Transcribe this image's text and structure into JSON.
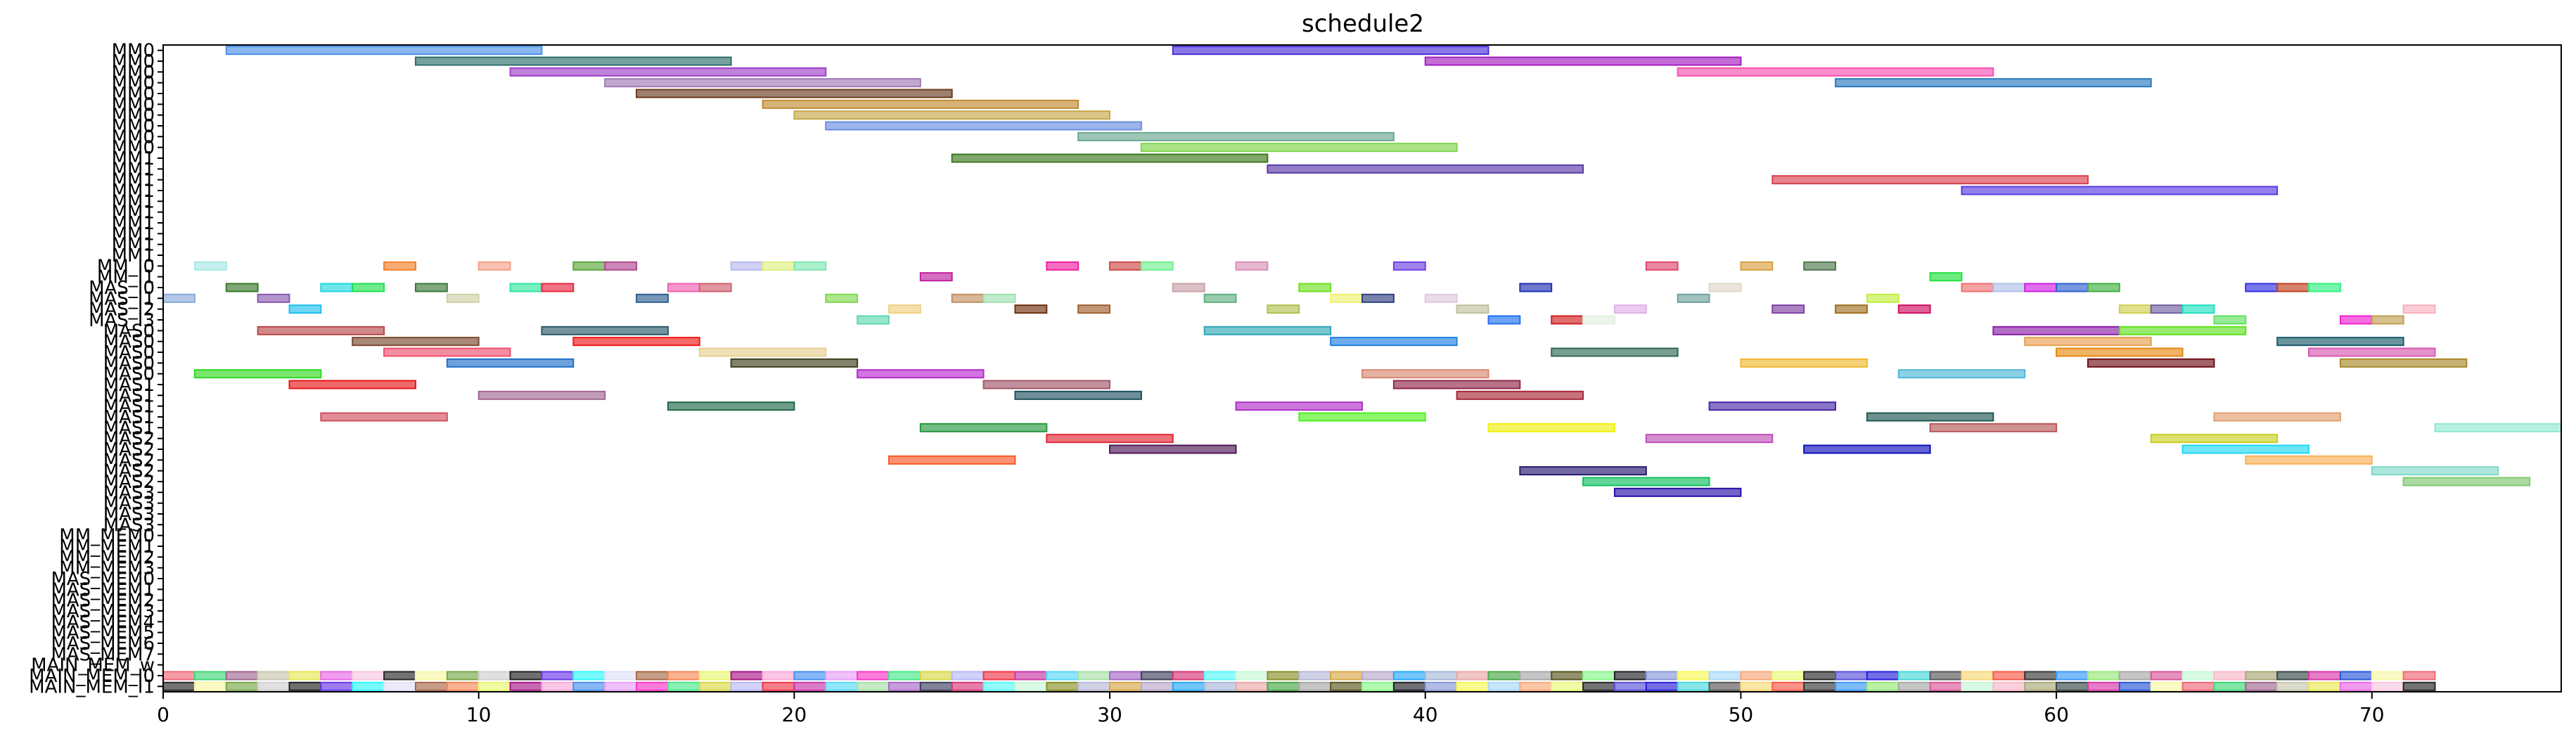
{
  "chart_data": {
    "type": "gantt",
    "title": "schedule2",
    "xlim": [
      0,
      76
    ],
    "x_ticks": [
      0,
      10,
      20,
      30,
      40,
      50,
      60,
      70
    ],
    "x_tick_labels": [
      "0",
      "10",
      "20",
      "30",
      "40",
      "50",
      "60",
      "70"
    ],
    "ylabels": [
      "MM0",
      "MM0",
      "MM0",
      "MM0",
      "MM0",
      "MM0",
      "MM0",
      "MM0",
      "MM0",
      "MM0",
      "MM1",
      "MM1",
      "MM1",
      "MM1",
      "MM1",
      "MM1",
      "MM1",
      "MM1",
      "MM1",
      "MM1",
      "MM_I0",
      "MM_I1",
      "MAS_I0",
      "MAS_I1",
      "MAS_I2",
      "MAS_I3",
      "MAS0",
      "MAS0",
      "MAS0",
      "MAS0",
      "MAS0",
      "MAS1",
      "MAS1",
      "MAS1",
      "MAS1",
      "MAS1",
      "MAS2",
      "MAS2",
      "MAS2",
      "MAS2",
      "MAS2",
      "MAS3",
      "MAS3",
      "MAS3",
      "MAS3",
      "MM_MEM0",
      "MM_MEM1",
      "MM_MEM2",
      "MM_MEM3",
      "MAS_MEM0",
      "MAS_MEM1",
      "MAS_MEM2",
      "MAS_MEM3",
      "MAS_MEM4",
      "MAS_MEM5",
      "MAS_MEM6",
      "MAS_MEM7",
      "MAIN_MEM_w",
      "MAIN_MEM_I0",
      "MAIN_MEM_I1"
    ],
    "bars": [
      {
        "row": 0,
        "start": 2,
        "end": 12,
        "color": "#4a90e8"
      },
      {
        "row": 0,
        "start": 32,
        "end": 42,
        "color": "#4b2fd8"
      },
      {
        "row": 1,
        "start": 8,
        "end": 18,
        "color": "#2e6e6a"
      },
      {
        "row": 1,
        "start": 40,
        "end": 50,
        "color": "#a51ec0"
      },
      {
        "row": 2,
        "start": 11,
        "end": 21,
        "color": "#9e3fc9"
      },
      {
        "row": 2,
        "start": 48,
        "end": 58,
        "color": "#f852b0"
      },
      {
        "row": 3,
        "start": 14,
        "end": 24,
        "color": "#a07ab5"
      },
      {
        "row": 3,
        "start": 53,
        "end": 63,
        "color": "#2a7ac0"
      },
      {
        "row": 4,
        "start": 15,
        "end": 25,
        "color": "#6b3a1e"
      },
      {
        "row": 5,
        "start": 19,
        "end": 29,
        "color": "#c28a32"
      },
      {
        "row": 6,
        "start": 20,
        "end": 30,
        "color": "#c8a848"
      },
      {
        "row": 7,
        "start": 21,
        "end": 31,
        "color": "#6a8ee0"
      },
      {
        "row": 8,
        "start": 29,
        "end": 39,
        "color": "#6aa88f"
      },
      {
        "row": 9,
        "start": 31,
        "end": 41,
        "color": "#7ed44a"
      },
      {
        "row": 10,
        "start": 25,
        "end": 35,
        "color": "#3c7a1e"
      },
      {
        "row": 11,
        "start": 35,
        "end": 45,
        "color": "#5a3aa8"
      },
      {
        "row": 12,
        "start": 51,
        "end": 61,
        "color": "#d8404e"
      },
      {
        "row": 13,
        "start": 57,
        "end": 67,
        "color": "#5a3ae0"
      },
      {
        "row": 20,
        "start": 1,
        "end": 2,
        "color": "#a8e8e6"
      },
      {
        "row": 20,
        "start": 7,
        "end": 8,
        "color": "#f2802a"
      },
      {
        "row": 20,
        "start": 10,
        "end": 11,
        "color": "#f4a088"
      },
      {
        "row": 20,
        "start": 13,
        "end": 14,
        "color": "#5aa83a"
      },
      {
        "row": 20,
        "start": 14,
        "end": 15,
        "color": "#b04a90"
      },
      {
        "row": 20,
        "start": 18,
        "end": 19,
        "color": "#b8b8f0"
      },
      {
        "row": 20,
        "start": 19,
        "end": 20,
        "color": "#e0f080"
      },
      {
        "row": 20,
        "start": 20,
        "end": 21,
        "color": "#80e8b0"
      },
      {
        "row": 20,
        "start": 28,
        "end": 29,
        "color": "#f020a0"
      },
      {
        "row": 20,
        "start": 30,
        "end": 31,
        "color": "#d04848"
      },
      {
        "row": 20,
        "start": 31,
        "end": 32,
        "color": "#70f090"
      },
      {
        "row": 20,
        "start": 34,
        "end": 35,
        "color": "#d890b8"
      },
      {
        "row": 20,
        "start": 39,
        "end": 40,
        "color": "#7040e0"
      },
      {
        "row": 20,
        "start": 47,
        "end": 48,
        "color": "#e04870"
      },
      {
        "row": 20,
        "start": 50,
        "end": 51,
        "color": "#d8a040"
      },
      {
        "row": 20,
        "start": 52,
        "end": 53,
        "color": "#507850"
      },
      {
        "row": 21,
        "start": 24,
        "end": 25,
        "color": "#c020a0"
      },
      {
        "row": 21,
        "start": 56,
        "end": 57,
        "color": "#20e040"
      },
      {
        "row": 22,
        "start": 2,
        "end": 3,
        "color": "#3a7a2a"
      },
      {
        "row": 22,
        "start": 5,
        "end": 6,
        "color": "#20d8e0"
      },
      {
        "row": 22,
        "start": 6,
        "end": 7,
        "color": "#20e050"
      },
      {
        "row": 22,
        "start": 8,
        "end": 9,
        "color": "#3a7a3a"
      },
      {
        "row": 22,
        "start": 11,
        "end": 12,
        "color": "#30e8a0"
      },
      {
        "row": 22,
        "start": 12,
        "end": 13,
        "color": "#e82840"
      },
      {
        "row": 22,
        "start": 16,
        "end": 17,
        "color": "#f060b0"
      },
      {
        "row": 22,
        "start": 17,
        "end": 18,
        "color": "#d06070"
      },
      {
        "row": 22,
        "start": 32,
        "end": 33,
        "color": "#c8a0a8"
      },
      {
        "row": 22,
        "start": 36,
        "end": 37,
        "color": "#70e020"
      },
      {
        "row": 22,
        "start": 43,
        "end": 44,
        "color": "#2030b0"
      },
      {
        "row": 22,
        "start": 49,
        "end": 50,
        "color": "#e0d8c8"
      },
      {
        "row": 22,
        "start": 57,
        "end": 58,
        "color": "#f07070"
      },
      {
        "row": 22,
        "start": 58,
        "end": 59,
        "color": "#b0c0e8"
      },
      {
        "row": 22,
        "start": 59,
        "end": 60,
        "color": "#d020e0"
      },
      {
        "row": 22,
        "start": 60,
        "end": 61,
        "color": "#3060d0"
      },
      {
        "row": 22,
        "start": 61,
        "end": 62,
        "color": "#40b040"
      },
      {
        "row": 22,
        "start": 66,
        "end": 67,
        "color": "#3030e0"
      },
      {
        "row": 22,
        "start": 67,
        "end": 68,
        "color": "#c04020"
      },
      {
        "row": 22,
        "start": 68,
        "end": 69,
        "color": "#30f080"
      },
      {
        "row": 23,
        "start": 0,
        "end": 1,
        "color": "#88aad8"
      },
      {
        "row": 23,
        "start": 3,
        "end": 4,
        "color": "#8a5ab0"
      },
      {
        "row": 23,
        "start": 9,
        "end": 10,
        "color": "#d0d0a8"
      },
      {
        "row": 23,
        "start": 15,
        "end": 16,
        "color": "#306090"
      },
      {
        "row": 23,
        "start": 21,
        "end": 22,
        "color": "#80d850"
      },
      {
        "row": 23,
        "start": 25,
        "end": 26,
        "color": "#c09060"
      },
      {
        "row": 23,
        "start": 26,
        "end": 27,
        "color": "#a0e0b0"
      },
      {
        "row": 23,
        "start": 33,
        "end": 34,
        "color": "#60b080"
      },
      {
        "row": 23,
        "start": 37,
        "end": 38,
        "color": "#f0f070"
      },
      {
        "row": 23,
        "start": 38,
        "end": 39,
        "color": "#304080"
      },
      {
        "row": 23,
        "start": 40,
        "end": 41,
        "color": "#e0c8e0"
      },
      {
        "row": 23,
        "start": 48,
        "end": 49,
        "color": "#70a0a0"
      },
      {
        "row": 23,
        "start": 54,
        "end": 55,
        "color": "#c0f040"
      },
      {
        "row": 24,
        "start": 4,
        "end": 5,
        "color": "#20c0f0"
      },
      {
        "row": 24,
        "start": 23,
        "end": 24,
        "color": "#f0d080"
      },
      {
        "row": 24,
        "start": 27,
        "end": 28,
        "color": "#703010"
      },
      {
        "row": 24,
        "start": 29,
        "end": 30,
        "color": "#a06030"
      },
      {
        "row": 24,
        "start": 35,
        "end": 36,
        "color": "#b0c050"
      },
      {
        "row": 24,
        "start": 41,
        "end": 42,
        "color": "#c0c0a0"
      },
      {
        "row": 24,
        "start": 46,
        "end": 47,
        "color": "#e0b0e8"
      },
      {
        "row": 24,
        "start": 51,
        "end": 52,
        "color": "#8040a0"
      },
      {
        "row": 24,
        "start": 53,
        "end": 54,
        "color": "#a07020"
      },
      {
        "row": 24,
        "start": 55,
        "end": 56,
        "color": "#d01060"
      },
      {
        "row": 24,
        "start": 62,
        "end": 63,
        "color": "#d0d050"
      },
      {
        "row": 24,
        "start": 63,
        "end": 64,
        "color": "#7060a0"
      },
      {
        "row": 24,
        "start": 64,
        "end": 65,
        "color": "#20e0c0"
      },
      {
        "row": 24,
        "start": 71,
        "end": 72,
        "color": "#f8b0c0"
      },
      {
        "row": 25,
        "start": 22,
        "end": 23,
        "color": "#60d8b0"
      },
      {
        "row": 25,
        "start": 42,
        "end": 43,
        "color": "#2070f0"
      },
      {
        "row": 25,
        "start": 44,
        "end": 45,
        "color": "#d02020"
      },
      {
        "row": 25,
        "start": 45,
        "end": 46,
        "color": "#e0f0e0"
      },
      {
        "row": 25,
        "start": 65,
        "end": 66,
        "color": "#60e060"
      },
      {
        "row": 25,
        "start": 69,
        "end": 70,
        "color": "#f020d0"
      },
      {
        "row": 25,
        "start": 70,
        "end": 71,
        "color": "#c0a050"
      },
      {
        "row": 26,
        "start": 3,
        "end": 7,
        "color": "#b84848"
      },
      {
        "row": 26,
        "start": 12,
        "end": 16,
        "color": "#2a5a6a"
      },
      {
        "row": 26,
        "start": 33,
        "end": 37,
        "color": "#30a8b8"
      },
      {
        "row": 26,
        "start": 58,
        "end": 62,
        "color": "#8a20a8"
      },
      {
        "row": 26,
        "start": 62,
        "end": 66,
        "color": "#60e020"
      },
      {
        "row": 27,
        "start": 6,
        "end": 10,
        "color": "#7a4a30"
      },
      {
        "row": 27,
        "start": 13,
        "end": 17,
        "color": "#f01818"
      },
      {
        "row": 27,
        "start": 37,
        "end": 41,
        "color": "#2080e0"
      },
      {
        "row": 27,
        "start": 59,
        "end": 63,
        "color": "#e8a050"
      },
      {
        "row": 27,
        "start": 67,
        "end": 71,
        "color": "#1a5a6a"
      },
      {
        "row": 28,
        "start": 7,
        "end": 11,
        "color": "#f05070"
      },
      {
        "row": 28,
        "start": 17,
        "end": 21,
        "color": "#e8d090"
      },
      {
        "row": 28,
        "start": 44,
        "end": 48,
        "color": "#306858"
      },
      {
        "row": 28,
        "start": 60,
        "end": 64,
        "color": "#e88810"
      },
      {
        "row": 28,
        "start": 68,
        "end": 72,
        "color": "#d858b0"
      },
      {
        "row": 29,
        "start": 9,
        "end": 13,
        "color": "#2070c8"
      },
      {
        "row": 29,
        "start": 18,
        "end": 22,
        "color": "#404020"
      },
      {
        "row": 29,
        "start": 50,
        "end": 54,
        "color": "#f0b830"
      },
      {
        "row": 29,
        "start": 61,
        "end": 65,
        "color": "#701018"
      },
      {
        "row": 29,
        "start": 69,
        "end": 73,
        "color": "#a88828"
      },
      {
        "row": 30,
        "start": 1,
        "end": 5,
        "color": "#30d820"
      },
      {
        "row": 30,
        "start": 22,
        "end": 26,
        "color": "#b828d0"
      },
      {
        "row": 30,
        "start": 38,
        "end": 42,
        "color": "#d88870"
      },
      {
        "row": 30,
        "start": 55,
        "end": 59,
        "color": "#50b8d8"
      },
      {
        "row": 31,
        "start": 4,
        "end": 8,
        "color": "#e81818"
      },
      {
        "row": 31,
        "start": 26,
        "end": 30,
        "color": "#a05868"
      },
      {
        "row": 31,
        "start": 39,
        "end": 43,
        "color": "#902848"
      },
      {
        "row": 32,
        "start": 10,
        "end": 14,
        "color": "#a06890"
      },
      {
        "row": 32,
        "start": 27,
        "end": 31,
        "color": "#205060"
      },
      {
        "row": 32,
        "start": 41,
        "end": 45,
        "color": "#a82838"
      },
      {
        "row": 33,
        "start": 16,
        "end": 20,
        "color": "#206848"
      },
      {
        "row": 33,
        "start": 34,
        "end": 38,
        "color": "#b030c8"
      },
      {
        "row": 33,
        "start": 49,
        "end": 53,
        "color": "#4828a8"
      },
      {
        "row": 34,
        "start": 5,
        "end": 9,
        "color": "#d05060"
      },
      {
        "row": 34,
        "start": 36,
        "end": 40,
        "color": "#50f020"
      },
      {
        "row": 34,
        "start": 54,
        "end": 58,
        "color": "#205850"
      },
      {
        "row": 34,
        "start": 65,
        "end": 69,
        "color": "#e0a070"
      },
      {
        "row": 35,
        "start": 24,
        "end": 28,
        "color": "#289840"
      },
      {
        "row": 35,
        "start": 42,
        "end": 46,
        "color": "#f0f010"
      },
      {
        "row": 35,
        "start": 56,
        "end": 60,
        "color": "#b85858"
      },
      {
        "row": 35,
        "start": 72,
        "end": 76,
        "color": "#90e8d0"
      },
      {
        "row": 36,
        "start": 28,
        "end": 32,
        "color": "#e02838"
      },
      {
        "row": 36,
        "start": 47,
        "end": 51,
        "color": "#c050b8"
      },
      {
        "row": 36,
        "start": 63,
        "end": 67,
        "color": "#c8d020"
      },
      {
        "row": 37,
        "start": 30,
        "end": 34,
        "color": "#501858"
      },
      {
        "row": 37,
        "start": 52,
        "end": 56,
        "color": "#1010b8"
      },
      {
        "row": 37,
        "start": 64,
        "end": 68,
        "color": "#20d8f0"
      },
      {
        "row": 38,
        "start": 23,
        "end": 27,
        "color": "#f85828"
      },
      {
        "row": 38,
        "start": 66,
        "end": 70,
        "color": "#f8b058"
      },
      {
        "row": 39,
        "start": 43,
        "end": 47,
        "color": "#281870"
      },
      {
        "row": 39,
        "start": 70,
        "end": 74,
        "color": "#80d8c8"
      },
      {
        "row": 40,
        "start": 45,
        "end": 49,
        "color": "#10c060"
      },
      {
        "row": 40,
        "start": 71,
        "end": 75,
        "color": "#80c870"
      },
      {
        "row": 41,
        "start": 46,
        "end": 50,
        "color": "#2810a8"
      }
    ],
    "main_mem_row_colors": [
      "#f06878",
      "#40d878",
      "#a06890",
      "#c8c8b0",
      "#e8e858",
      "#e868e8",
      "#f8c8e0",
      "#282828",
      "#f8f8a8",
      "#78a848",
      "#d0d0d0",
      "#202020",
      "#6838e8",
      "#30f8f8",
      "#e0e0f8",
      "#a86848",
      "#f88858",
      "#e8f870",
      "#a81888",
      "#f8a8d8",
      "#4890f0",
      "#e8a0f8",
      "#f838c8",
      "#48e888",
      "#d8d848",
      "#b8b8f8",
      "#f03848",
      "#c838a8",
      "#58d8f8",
      "#a8e0a8",
      "#a868c8",
      "#404060",
      "#d83878",
      "#58f8f8",
      "#c8f8d8",
      "#889028",
      "#b8b8d8",
      "#d8a848",
      "#b8a8c8",
      "#28a8f8",
      "#a8b8d8",
      "#e8a8a8",
      "#48a848",
      "#a8a8a8",
      "#585820",
      "#88f888",
      "#202028",
      "#8898d8",
      "#f8f858",
      "#a8d8f8",
      "#f8a878",
      "#e8f878",
      "#282828",
      "#5850d8",
      "#2820d8",
      "#48d8d8",
      "#585858",
      "#f8d878",
      "#f85848",
      "#383838",
      "#3898f8",
      "#98e878",
      "#a8a8a8",
      "#d85898",
      "#c8f8d8",
      "#f8b8c8",
      "#a8a878",
      "#384848",
      "#d838a8",
      "#2858d8",
      "#f8f8a8"
    ],
    "main_mem_range": [
      0,
      72
    ]
  }
}
